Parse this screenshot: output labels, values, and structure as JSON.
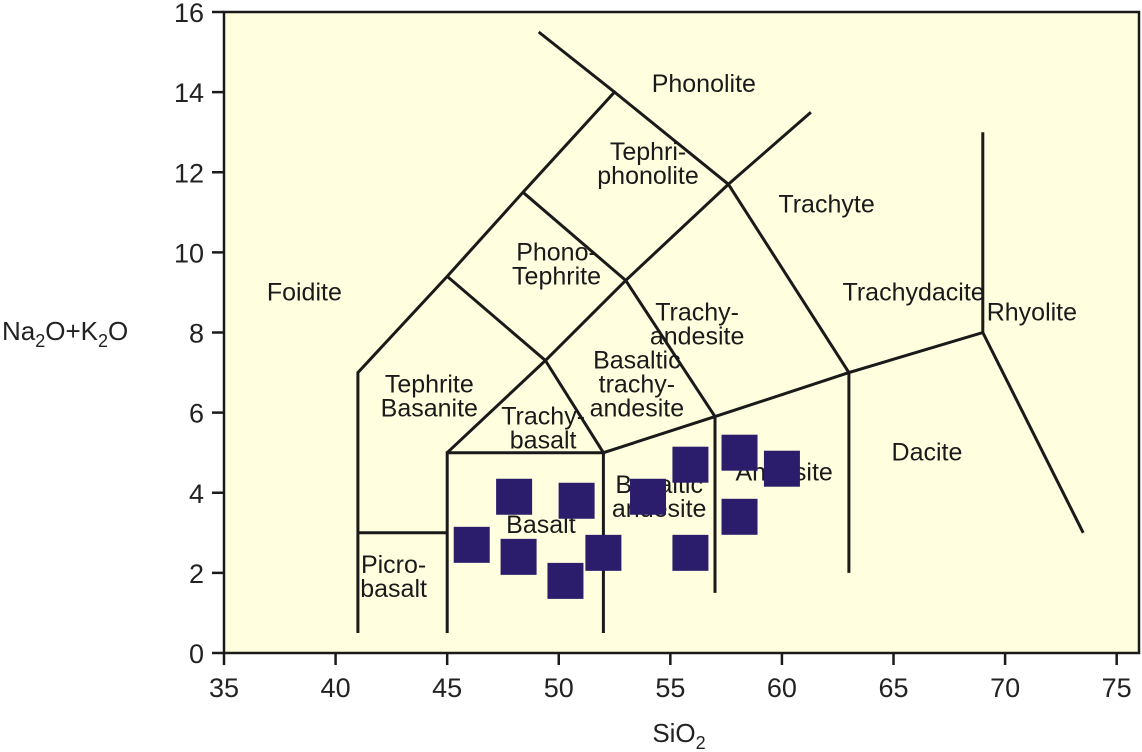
{
  "chart_data": {
    "type": "scatter",
    "xlim": [
      35,
      76
    ],
    "ylim": [
      0,
      16
    ],
    "x_ticks": [
      "35",
      "40",
      "45",
      "50",
      "55",
      "60",
      "65",
      "70",
      "75"
    ],
    "y_ticks": [
      "0",
      "2",
      "4",
      "6",
      "8",
      "10",
      "12",
      "14",
      "16"
    ],
    "xlabel": {
      "main": "SiO",
      "sub": "2"
    },
    "ylabel": {
      "p1": "Na",
      "s1": "2",
      "p2": "O+K",
      "s2": "2",
      "p3": "O"
    },
    "grid": false,
    "colors": {
      "background": "#ffffe0",
      "marker": "#2b1d6b",
      "line": "#1a1a1a"
    },
    "points": [
      {
        "x": 48.0,
        "y": 3.9
      },
      {
        "x": 50.8,
        "y": 3.8
      },
      {
        "x": 46.1,
        "y": 2.7
      },
      {
        "x": 48.2,
        "y": 2.4
      },
      {
        "x": 50.3,
        "y": 1.8
      },
      {
        "x": 52.0,
        "y": 2.5
      },
      {
        "x": 54.0,
        "y": 3.9
      },
      {
        "x": 55.9,
        "y": 4.7
      },
      {
        "x": 55.9,
        "y": 2.5
      },
      {
        "x": 58.1,
        "y": 5.0
      },
      {
        "x": 60.0,
        "y": 4.6
      },
      {
        "x": 58.1,
        "y": 3.4
      }
    ],
    "boundaries": [
      [
        [
          41,
          0.5
        ],
        [
          41,
          7
        ],
        [
          45,
          9.4
        ],
        [
          48.4,
          11.5
        ],
        [
          52.5,
          14
        ],
        [
          57.6,
          11.7
        ],
        [
          63,
          7
        ],
        [
          69,
          8
        ],
        [
          69,
          13
        ]
      ],
      [
        [
          41,
          3
        ],
        [
          45,
          3
        ]
      ],
      [
        [
          45,
          0.5
        ],
        [
          45,
          5
        ],
        [
          52,
          5
        ],
        [
          57,
          5.9
        ],
        [
          63,
          7
        ]
      ],
      [
        [
          52,
          0.5
        ],
        [
          52,
          5
        ]
      ],
      [
        [
          57,
          1.5
        ],
        [
          57,
          5.9
        ]
      ],
      [
        [
          63,
          2
        ],
        [
          63,
          7
        ]
      ],
      [
        [
          69,
          8
        ],
        [
          73.5,
          3
        ]
      ],
      [
        [
          45,
          5
        ],
        [
          49.4,
          7.3
        ],
        [
          53,
          9.3
        ],
        [
          57.6,
          11.7
        ],
        [
          61.3,
          13.5
        ]
      ],
      [
        [
          49.4,
          7.3
        ],
        [
          52,
          5
        ]
      ],
      [
        [
          53,
          9.3
        ],
        [
          57,
          5.9
        ]
      ],
      [
        [
          45,
          9.4
        ],
        [
          49.4,
          7.3
        ]
      ],
      [
        [
          48.4,
          11.5
        ],
        [
          53,
          9.3
        ]
      ],
      [
        [
          52.5,
          14
        ],
        [
          49.1,
          15.5
        ]
      ]
    ],
    "fields": [
      {
        "lines": [
          "Phonolite"
        ],
        "x": 56.5,
        "y": 14.0
      },
      {
        "lines": [
          "Tephri-",
          "phonolite"
        ],
        "x": 54.0,
        "y": 12.3
      },
      {
        "lines": [
          "Trachyte"
        ],
        "x": 62.0,
        "y": 11.0
      },
      {
        "lines": [
          "Phono-",
          "Tephrite"
        ],
        "x": 49.9,
        "y": 9.8
      },
      {
        "lines": [
          "Foidite"
        ],
        "x": 38.6,
        "y": 8.8
      },
      {
        "lines": [
          "Trachy-",
          "andesite"
        ],
        "x": 56.2,
        "y": 8.3
      },
      {
        "lines": [
          "Trachydacite"
        ],
        "x": 65.9,
        "y": 8.8
      },
      {
        "lines": [
          "Rhyolite"
        ],
        "x": 71.2,
        "y": 8.3
      },
      {
        "lines": [
          "Basaltic",
          "trachy-",
          "andesite"
        ],
        "x": 53.5,
        "y": 7.1
      },
      {
        "lines": [
          "Tephrite",
          "Basanite"
        ],
        "x": 44.2,
        "y": 6.5
      },
      {
        "lines": [
          "Trachy-",
          "basalt"
        ],
        "x": 49.3,
        "y": 5.7
      },
      {
        "lines": [
          "Dacite"
        ],
        "x": 66.5,
        "y": 4.8
      },
      {
        "lines": [
          "Andesite"
        ],
        "x": 60.1,
        "y": 4.3
      },
      {
        "lines": [
          "Basaltic",
          "andesite"
        ],
        "x": 54.5,
        "y": 4.0
      },
      {
        "lines": [
          "Basalt"
        ],
        "x": 49.2,
        "y": 3.0
      },
      {
        "lines": [
          "Picro-",
          "basalt"
        ],
        "x": 42.6,
        "y": 2.0
      }
    ]
  }
}
